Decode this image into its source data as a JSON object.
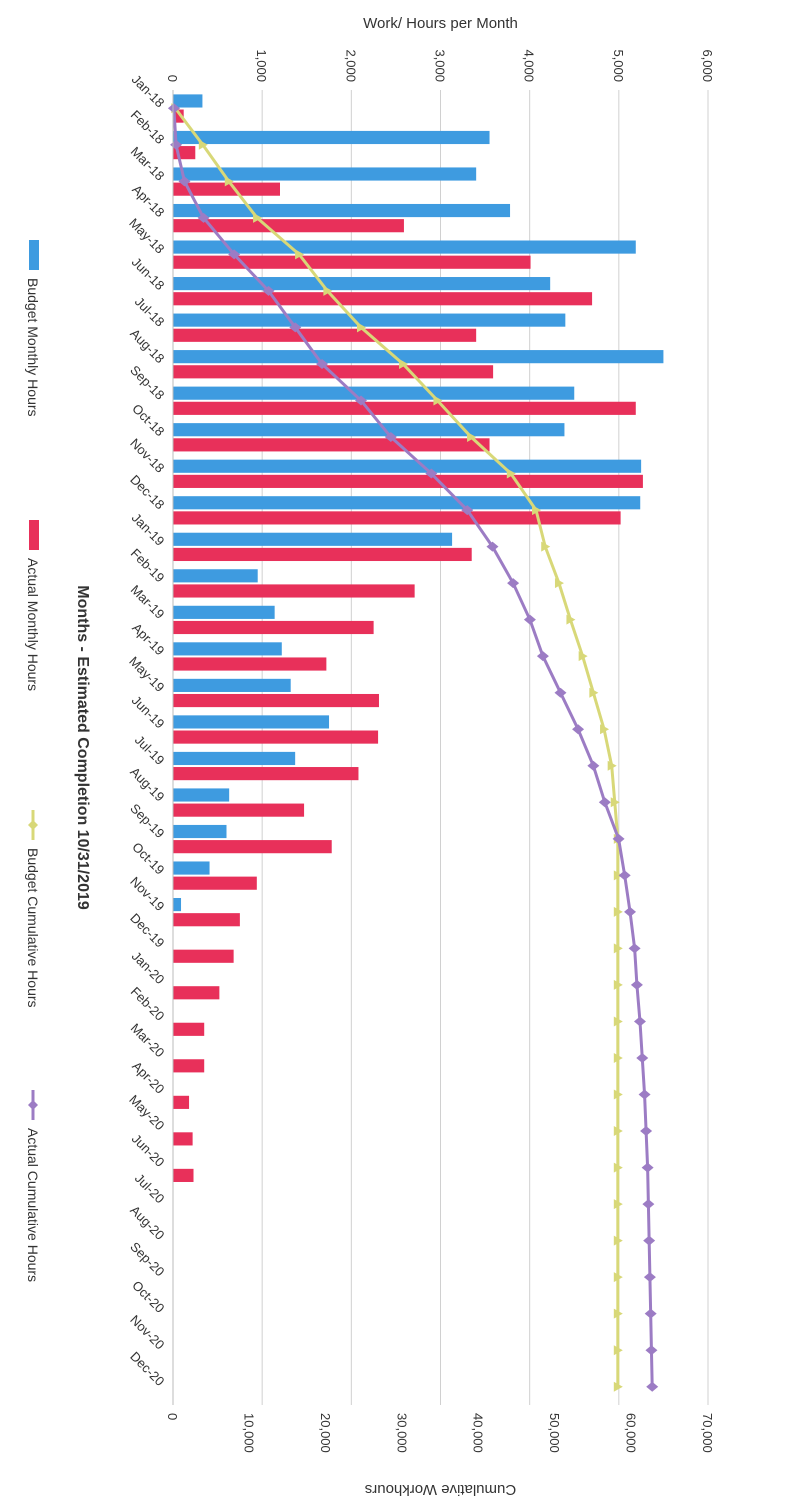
{
  "chart_data": {
    "type": "bar",
    "orientation": "rotated 90 degrees clockwise",
    "title": "",
    "xlabel": "Months - Estimated Completion 10/31/2019",
    "y_left_label": "Work/ Hours per Month",
    "y_right_label": "Cumulative Workhours",
    "y_left_ticks": [
      "0",
      "1,000",
      "2,000",
      "3,000",
      "4,000",
      "5,000",
      "6,000"
    ],
    "y_right_ticks": [
      "0",
      "10,000",
      "20,000",
      "30,000",
      "40,000",
      "50,000",
      "60,000",
      "70,000"
    ],
    "y_left_range": [
      0,
      6000
    ],
    "y_right_range": [
      0,
      70000
    ],
    "grid": true,
    "legend_position": "bottom",
    "categories": [
      "Jan-18",
      "Feb-18",
      "Mar-18",
      "Apr-18",
      "May-18",
      "Jun-18",
      "Jul-18",
      "Aug-18",
      "Sep-18",
      "Oct-18",
      "Nov-18",
      "Dec-18",
      "Jan-19",
      "Feb-19",
      "Mar-19",
      "Apr-19",
      "May-19",
      "Jun-19",
      "Jul-19",
      "Aug-19",
      "Sep-19",
      "Oct-19",
      "Nov-19",
      "Dec-19",
      "Jan-20",
      "Feb-20",
      "Mar-20",
      "Apr-20",
      "May-20",
      "Jun-20",
      "Jul-20",
      "Aug-20",
      "Sep-20",
      "Oct-20",
      "Nov-20",
      "Dec-20"
    ],
    "series": [
      {
        "name": "Budget Monthly Hours",
        "kind": "bar",
        "axis": "left",
        "color": "#3E9BE0",
        "values": [
          330,
          3550,
          3400,
          3780,
          5190,
          4230,
          4400,
          5500,
          4500,
          4390,
          5250,
          5240,
          3130,
          950,
          1140,
          1220,
          1320,
          1750,
          1370,
          630,
          600,
          410,
          90,
          0,
          0,
          0,
          0,
          0,
          0,
          0,
          0,
          0,
          0,
          0,
          0,
          0
        ]
      },
      {
        "name": "Actual Monthly Hours",
        "kind": "bar",
        "axis": "left",
        "color": "#E8305A",
        "values": [
          120,
          250,
          1200,
          2590,
          4010,
          4700,
          3400,
          3590,
          5190,
          3550,
          5270,
          5020,
          3350,
          2710,
          2250,
          1720,
          2310,
          2300,
          2080,
          1470,
          1780,
          940,
          750,
          680,
          520,
          350,
          350,
          180,
          220,
          230,
          0,
          0,
          0,
          0,
          0,
          0
        ]
      },
      {
        "name": "Budget Cumulative Hours",
        "kind": "line",
        "axis": "right",
        "color": "#D8D878",
        "marker": "triangle",
        "values": [
          300,
          3900,
          7300,
          11000,
          16500,
          20200,
          24600,
          30100,
          34600,
          39000,
          44200,
          47500,
          48700,
          50500,
          52000,
          53600,
          55000,
          56400,
          57400,
          57800,
          58200,
          58200,
          58200,
          58200,
          58200,
          58200,
          58200,
          58200,
          58200,
          58200,
          58200,
          58200,
          58200,
          58200,
          58200,
          58200
        ]
      },
      {
        "name": "Actual Cumulative Hours",
        "kind": "line",
        "axis": "right",
        "color": "#9C7CC4",
        "marker": "diamond",
        "values": [
          120,
          400,
          1500,
          4000,
          8000,
          12500,
          16000,
          19500,
          24600,
          28500,
          33800,
          38500,
          41800,
          44500,
          46700,
          48400,
          50700,
          53000,
          55000,
          56500,
          58300,
          59100,
          59800,
          60400,
          60700,
          61100,
          61400,
          61700,
          61900,
          62100,
          62200,
          62300,
          62400,
          62500,
          62600,
          62700
        ]
      }
    ]
  }
}
